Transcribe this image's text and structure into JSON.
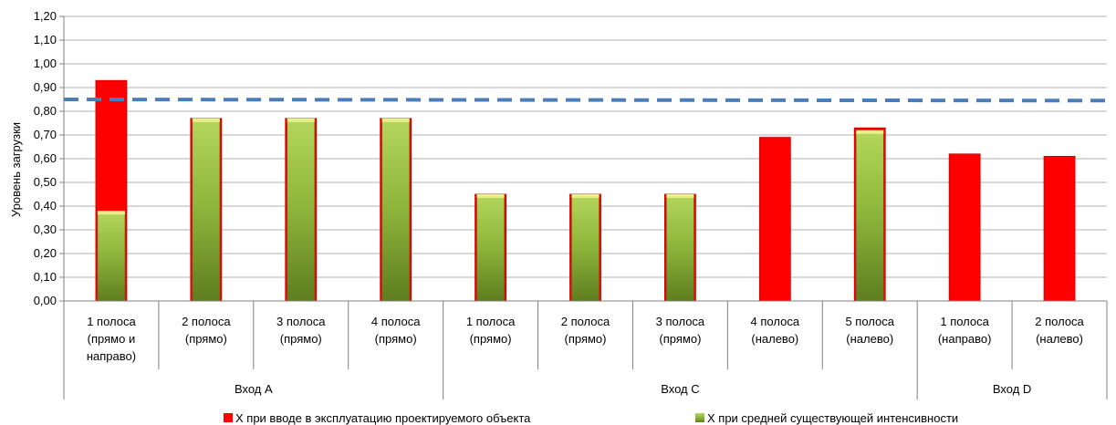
{
  "chart_data": {
    "type": "bar",
    "ylabel": "Уровень загрузки",
    "ylim": [
      0,
      1.2
    ],
    "ytick_step": 0.1,
    "ytick_labels": [
      "0,00",
      "0,10",
      "0,20",
      "0,30",
      "0,40",
      "0,50",
      "0,60",
      "0,70",
      "0,80",
      "0,90",
      "1,00",
      "1,10",
      "1,20"
    ],
    "categories": [
      [
        "1 полоса",
        "(прямо и",
        "направо)"
      ],
      [
        "2 полоса",
        "(прямо)"
      ],
      [
        "3 полоса",
        "(прямо)"
      ],
      [
        "4 полоса",
        "(прямо)"
      ],
      [
        "1 полоса",
        "(прямо)"
      ],
      [
        "2 полоса",
        "(прямо)"
      ],
      [
        "3 полоса",
        "(прямо)"
      ],
      [
        "4 полоса",
        "(налево)"
      ],
      [
        "5 полоса",
        "(налево)"
      ],
      [
        "1 полоса",
        "(направо)"
      ],
      [
        "2 полоса",
        "(налево)"
      ]
    ],
    "groups": [
      {
        "label": "Вход А",
        "count": 4
      },
      {
        "label": "Вход С",
        "count": 5
      },
      {
        "label": "Вход D",
        "count": 2
      }
    ],
    "series": [
      {
        "name": "Х при вводе в эксплуатацию проектируемого объекта",
        "color": "#ff0000",
        "values": [
          0.93,
          0.77,
          0.77,
          0.77,
          0.45,
          0.45,
          0.45,
          0.69,
          0.73,
          0.62,
          0.61
        ]
      },
      {
        "name": "Х при средней существующей интенсивности",
        "color": "#8db43a",
        "values": [
          0.38,
          0.77,
          0.77,
          0.77,
          0.45,
          0.45,
          0.45,
          null,
          0.72,
          null,
          null
        ]
      }
    ],
    "threshold": {
      "value": 0.85,
      "end_value": 0.845,
      "color": "#4a7ebb",
      "style": "dashed"
    },
    "grid": true,
    "legend_position": "bottom"
  }
}
